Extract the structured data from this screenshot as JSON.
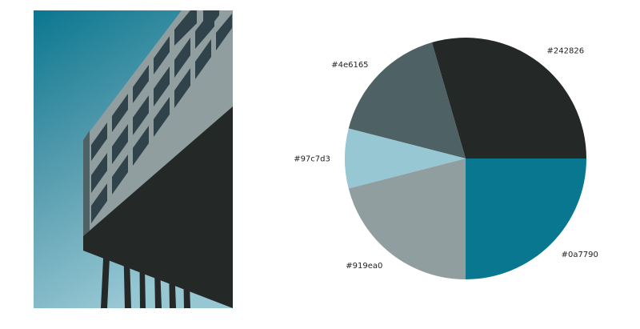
{
  "photo": {
    "icon": "building-photo",
    "colors": {
      "sky_top": "#0a7790",
      "sky_mid": "#4f98ab",
      "sky_bottom": "#97c7d3",
      "facade": "#919ea0",
      "facade_shadow": "#4e6165",
      "underside": "#242826",
      "window": "#31434a"
    }
  },
  "chart_data": {
    "type": "pie",
    "title": "",
    "start_angle_deg": 0,
    "direction": "counterclockwise",
    "slices": [
      {
        "label": "#242826",
        "value": 29.5,
        "color": "#242826"
      },
      {
        "label": "#4e6165",
        "value": 16.5,
        "color": "#4e6165"
      },
      {
        "label": "#97c7d3",
        "value": 8.0,
        "color": "#97c7d3"
      },
      {
        "label": "#919ea0",
        "value": 21.0,
        "color": "#919ea0"
      },
      {
        "label": "#0a7790",
        "value": 25.0,
        "color": "#0a7790"
      }
    ]
  }
}
